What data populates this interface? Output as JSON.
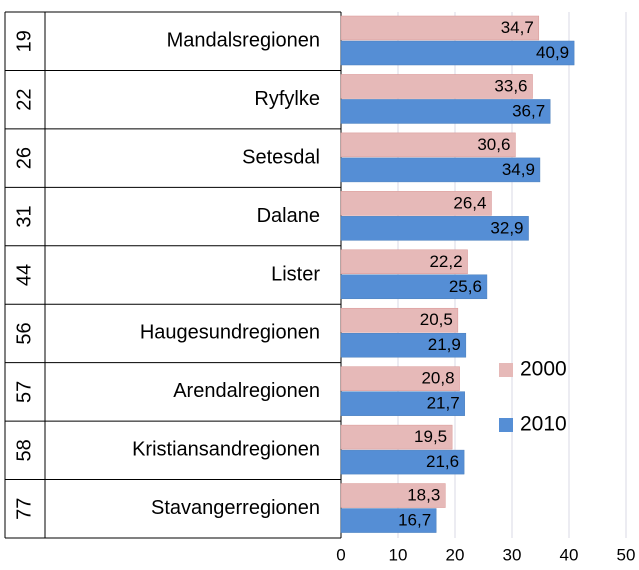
{
  "chart_data": {
    "type": "bar",
    "orientation": "horizontal",
    "ranks": [
      19,
      22,
      26,
      31,
      44,
      56,
      57,
      58,
      77
    ],
    "categories": [
      "Mandalsregionen",
      "Ryfylke",
      "Setesdal",
      "Dalane",
      "Lister",
      "Haugesundregionen",
      "Arendalregionen",
      "Kristiansandregionen",
      "Stavangerregionen"
    ],
    "series": [
      {
        "name": "2000",
        "color": "#e6b9b8",
        "values": [
          34.7,
          33.6,
          30.6,
          26.4,
          22.2,
          20.5,
          20.8,
          19.5,
          18.3
        ],
        "value_labels": [
          "34,7",
          "33,6",
          "30,6",
          "26,4",
          "22,2",
          "20,5",
          "20,8",
          "19,5",
          "18,3"
        ]
      },
      {
        "name": "2010",
        "color": "#558ed5",
        "values": [
          40.9,
          36.7,
          34.9,
          32.9,
          25.6,
          21.9,
          21.7,
          21.6,
          16.7
        ],
        "value_labels": [
          "40,9",
          "36,7",
          "34,9",
          "32,9",
          "25,6",
          "21,9",
          "21,7",
          "21,6",
          "16,7"
        ]
      }
    ],
    "xlim": [
      0,
      50
    ],
    "xticks": [
      0,
      10,
      20,
      30,
      40,
      50
    ],
    "grid": true,
    "legend": "right"
  }
}
